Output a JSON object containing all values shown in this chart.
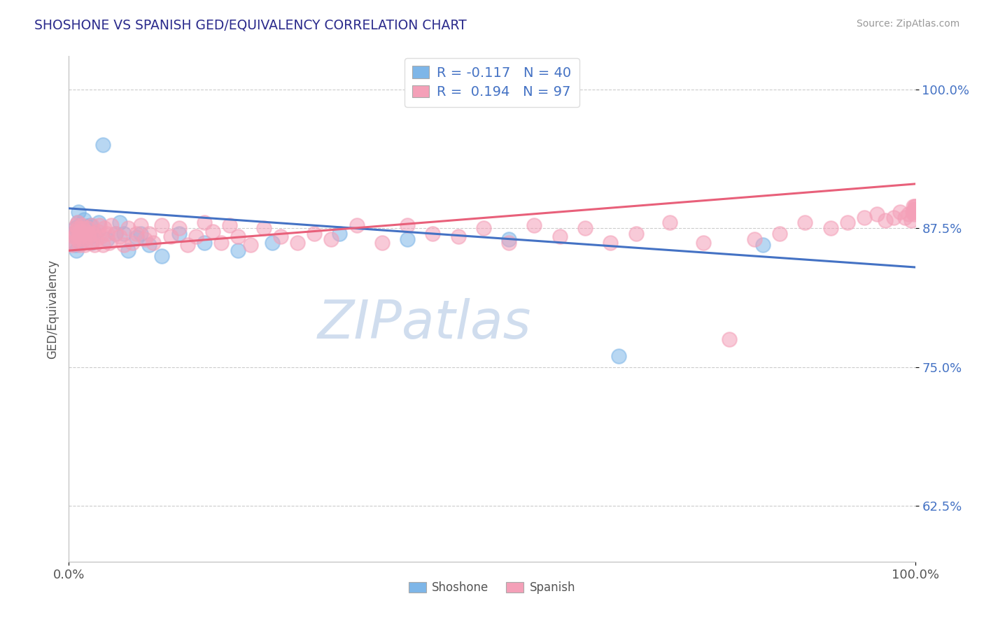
{
  "title": "SHOSHONE VS SPANISH GED/EQUIVALENCY CORRELATION CHART",
  "source": "Source: ZipAtlas.com",
  "ylabel": "GED/Equivalency",
  "ytick_labels": [
    "62.5%",
    "75.0%",
    "87.5%",
    "100.0%"
  ],
  "ytick_values": [
    0.625,
    0.75,
    0.875,
    1.0
  ],
  "xlim": [
    0.0,
    1.0
  ],
  "ylim": [
    0.575,
    1.03
  ],
  "shoshone_R": -0.117,
  "shoshone_N": 40,
  "spanish_R": 0.194,
  "spanish_N": 97,
  "shoshone_color": "#7EB6E8",
  "spanish_color": "#F4A0B8",
  "shoshone_edge_color": "#5A9AD4",
  "spanish_edge_color": "#E07090",
  "shoshone_line_color": "#4472C4",
  "spanish_line_color": "#E8607A",
  "background_color": "#FFFFFF",
  "watermark_text": "ZIPatlas",
  "watermark_color": "#C8D8EC",
  "shoshone_x": [
    0.005,
    0.007,
    0.008,
    0.009,
    0.01,
    0.01,
    0.01,
    0.011,
    0.012,
    0.013,
    0.014,
    0.015,
    0.016,
    0.018,
    0.02,
    0.022,
    0.025,
    0.025,
    0.027,
    0.03,
    0.035,
    0.04,
    0.045,
    0.055,
    0.06,
    0.065,
    0.07,
    0.08,
    0.085,
    0.095,
    0.11,
    0.13,
    0.16,
    0.2,
    0.24,
    0.32,
    0.4,
    0.52,
    0.65,
    0.82
  ],
  "shoshone_y": [
    0.87,
    0.875,
    0.86,
    0.855,
    0.88,
    0.872,
    0.865,
    0.89,
    0.878,
    0.868,
    0.862,
    0.875,
    0.87,
    0.883,
    0.877,
    0.873,
    0.868,
    0.878,
    0.862,
    0.87,
    0.88,
    0.95,
    0.865,
    0.87,
    0.88,
    0.87,
    0.855,
    0.867,
    0.87,
    0.86,
    0.85,
    0.87,
    0.862,
    0.855,
    0.862,
    0.87,
    0.865,
    0.865,
    0.76,
    0.86
  ],
  "spanish_x": [
    0.004,
    0.005,
    0.006,
    0.007,
    0.008,
    0.009,
    0.01,
    0.01,
    0.01,
    0.011,
    0.012,
    0.013,
    0.014,
    0.015,
    0.016,
    0.017,
    0.018,
    0.019,
    0.02,
    0.022,
    0.023,
    0.024,
    0.025,
    0.027,
    0.028,
    0.03,
    0.032,
    0.034,
    0.036,
    0.038,
    0.04,
    0.042,
    0.045,
    0.048,
    0.05,
    0.055,
    0.06,
    0.065,
    0.07,
    0.075,
    0.08,
    0.085,
    0.09,
    0.095,
    0.1,
    0.11,
    0.12,
    0.13,
    0.14,
    0.15,
    0.16,
    0.17,
    0.18,
    0.19,
    0.2,
    0.215,
    0.23,
    0.25,
    0.27,
    0.29,
    0.31,
    0.34,
    0.37,
    0.4,
    0.43,
    0.46,
    0.49,
    0.52,
    0.55,
    0.58,
    0.61,
    0.64,
    0.67,
    0.71,
    0.75,
    0.78,
    0.81,
    0.84,
    0.87,
    0.9,
    0.92,
    0.94,
    0.955,
    0.965,
    0.975,
    0.982,
    0.988,
    0.992,
    0.995,
    0.997,
    0.998,
    0.999,
    0.9993,
    0.9996,
    0.9998,
    0.9999,
    0.99995
  ],
  "spanish_y": [
    0.86,
    0.862,
    0.868,
    0.872,
    0.87,
    0.878,
    0.88,
    0.875,
    0.865,
    0.87,
    0.868,
    0.86,
    0.872,
    0.878,
    0.875,
    0.865,
    0.87,
    0.86,
    0.872,
    0.875,
    0.87,
    0.868,
    0.862,
    0.878,
    0.87,
    0.86,
    0.865,
    0.872,
    0.878,
    0.868,
    0.86,
    0.875,
    0.87,
    0.862,
    0.878,
    0.87,
    0.868,
    0.86,
    0.875,
    0.862,
    0.87,
    0.878,
    0.865,
    0.87,
    0.862,
    0.878,
    0.868,
    0.875,
    0.86,
    0.868,
    0.88,
    0.872,
    0.862,
    0.878,
    0.868,
    0.86,
    0.875,
    0.868,
    0.862,
    0.87,
    0.865,
    0.878,
    0.862,
    0.878,
    0.87,
    0.868,
    0.875,
    0.862,
    0.878,
    0.868,
    0.875,
    0.862,
    0.87,
    0.88,
    0.862,
    0.775,
    0.865,
    0.87,
    0.88,
    0.875,
    0.88,
    0.885,
    0.888,
    0.882,
    0.885,
    0.89,
    0.885,
    0.888,
    0.882,
    0.89,
    0.895,
    0.888,
    0.892,
    0.89,
    0.895,
    0.892,
    0.895
  ]
}
